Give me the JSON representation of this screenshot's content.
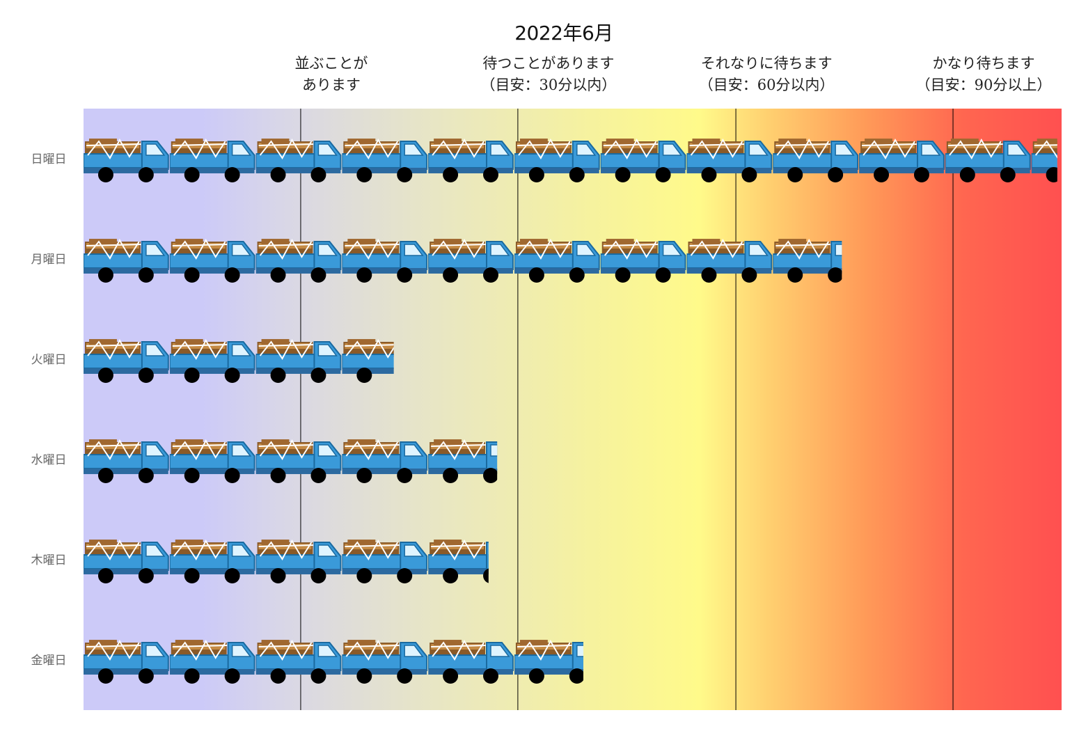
{
  "chart_data": {
    "type": "bar",
    "title": "2022年6月",
    "categories": [
      "日曜日",
      "月曜日",
      "火曜日",
      "水曜日",
      "木曜日",
      "金曜日"
    ],
    "series": [
      {
        "values": [
          11.3,
          8.8,
          3.6,
          4.8,
          4.7,
          5.8
        ]
      }
    ],
    "xlim": [
      0,
      11.35
    ],
    "unit_icon": "truck-icon",
    "zones": [
      {
        "boundary": 2.52,
        "lines": [
          "並ぶことが",
          "あります"
        ]
      },
      {
        "boundary": 5.04,
        "lines": [
          "待つことがあります",
          "（目安：30分以内）"
        ]
      },
      {
        "boundary": 7.57,
        "lines": [
          "それなりに待ちます",
          "（目安：60分以内）"
        ]
      },
      {
        "boundary": 10.09,
        "lines": [
          "かなり待ちます",
          "（目安：90分以上）"
        ]
      }
    ],
    "colors": {
      "low": "#cccaf8",
      "mid": "#fffa8a",
      "high": "#ff5050",
      "truck_body": "#3a9ad9",
      "truck_cargo": "#b07a3a",
      "wheel": "#000000"
    },
    "grid": false
  }
}
